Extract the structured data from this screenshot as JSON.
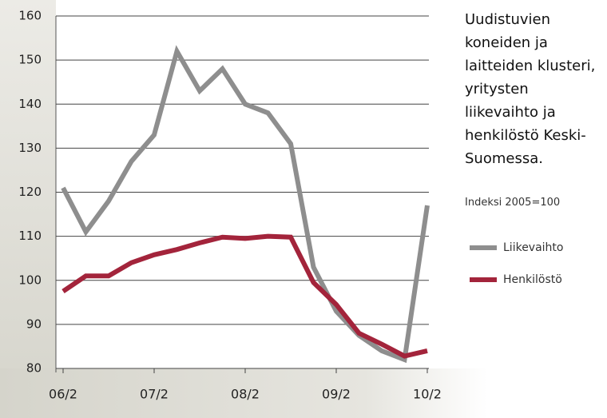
{
  "chart_data": {
    "type": "line",
    "title": "Uudistuvien koneiden ja laitteiden klusteri, yritysten liikevaihto ja henkilöstö Keski-Suomessa.",
    "subtitle": "Indeksi 2005=100",
    "categories": [
      "06/2",
      null,
      null,
      null,
      "07/2",
      null,
      null,
      null,
      "08/2",
      null,
      null,
      null,
      "09/2",
      null,
      null,
      null,
      "10/2"
    ],
    "series": [
      {
        "name": "Liikevaihto",
        "color": "#8e8e8e",
        "values": [
          121,
          111,
          118,
          127,
          133,
          152,
          143,
          148,
          140,
          138,
          131,
          103,
          93,
          87.5,
          84,
          82,
          117
        ]
      },
      {
        "name": "Henkilöstö",
        "color": "#a3243b",
        "values": [
          97.5,
          101,
          101,
          104,
          105.8,
          107,
          108.5,
          109.8,
          109.5,
          110,
          109.8,
          99.5,
          94.5,
          88,
          85.5,
          82.8,
          84
        ]
      }
    ],
    "ylim": [
      80,
      160
    ],
    "yticks": [
      80,
      90,
      100,
      110,
      120,
      130,
      140,
      150,
      160
    ],
    "grid": true
  }
}
